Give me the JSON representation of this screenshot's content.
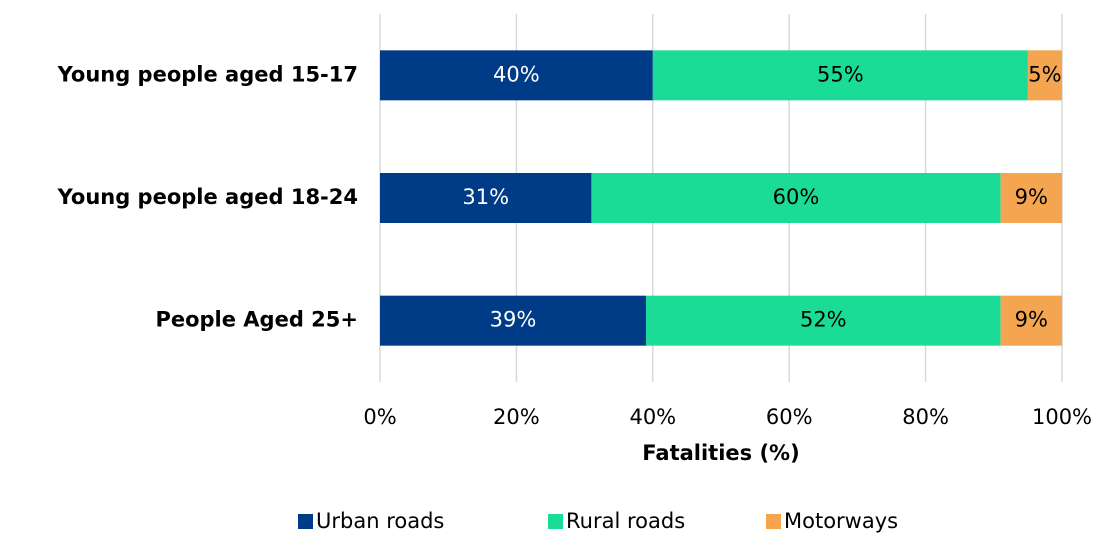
{
  "chart_data": {
    "type": "stacked_barh",
    "xlabel": "Fatalities (%)",
    "categories": [
      "Young people aged 15-17",
      "Young people aged 18-24",
      "People Aged 25+"
    ],
    "series": [
      {
        "name": "Urban roads",
        "color": "#003b87",
        "label_color": "#ffffff",
        "values": [
          40,
          31,
          39
        ],
        "value_labels": [
          "40%",
          "31%",
          "39%"
        ]
      },
      {
        "name": "Rural roads",
        "color": "#1adc96",
        "label_color": "#000000",
        "values": [
          55,
          60,
          52
        ],
        "value_labels": [
          "55%",
          "60%",
          "52%"
        ]
      },
      {
        "name": "Motorways",
        "color": "#f5a54f",
        "label_color": "#000000",
        "values": [
          5,
          9,
          9
        ],
        "value_labels": [
          "5%",
          "9%",
          "9%"
        ]
      }
    ],
    "xlim": [
      0,
      100
    ],
    "xticks": [
      {
        "value": 0,
        "label": "0%"
      },
      {
        "value": 20,
        "label": "20%"
      },
      {
        "value": 40,
        "label": "40%"
      },
      {
        "value": 60,
        "label": "60%"
      },
      {
        "value": 80,
        "label": "80%"
      },
      {
        "value": 100,
        "label": "100%"
      }
    ],
    "grid": true,
    "legend": "bottom"
  }
}
